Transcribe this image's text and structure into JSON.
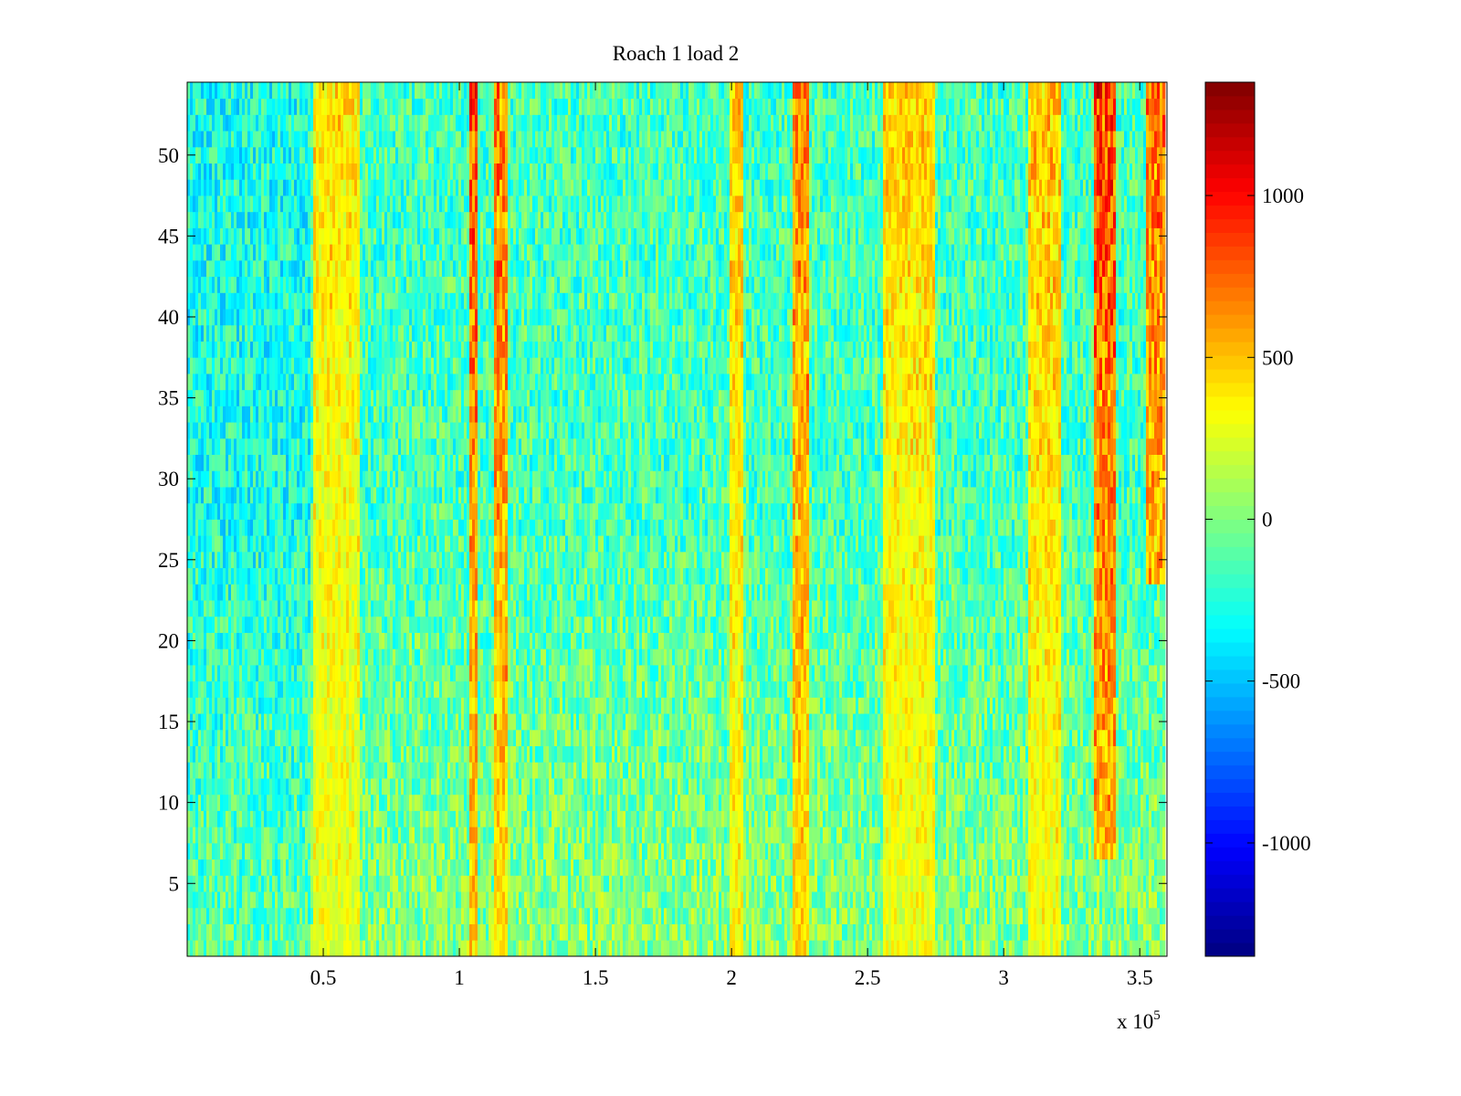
{
  "chart_data": {
    "type": "heatmap",
    "title": "Roach 1 load 2",
    "xlabel": "",
    "ylabel": "",
    "x_exponent_label": "x 10",
    "x_exponent_power": "5",
    "xlim": [
      0,
      360000
    ],
    "ylim": [
      0.5,
      54.5
    ],
    "x_tick_values": [
      0.5,
      1,
      1.5,
      2,
      2.5,
      3,
      3.5
    ],
    "x_tick_labels": [
      "0.5",
      "1",
      "1.5",
      "2",
      "2.5",
      "3",
      "3.5"
    ],
    "y_tick_values": [
      5,
      10,
      15,
      20,
      25,
      30,
      35,
      40,
      45,
      50
    ],
    "y_tick_labels": [
      "5",
      "10",
      "15",
      "20",
      "25",
      "30",
      "35",
      "40",
      "45",
      "50"
    ],
    "rows": 54,
    "colormap": "jet",
    "clim": [
      -1350,
      1350
    ],
    "colorbar": {
      "tick_values": [
        -1000,
        -500,
        0,
        500,
        1000
      ],
      "tick_labels": [
        "-1000",
        "-500",
        "0",
        "500",
        "1000"
      ]
    },
    "background_value": -80,
    "bands": [
      {
        "x_start": 46000,
        "x_end": 64000,
        "peak": 550,
        "rows": [
          1,
          54
        ]
      },
      {
        "x_start": 104000,
        "x_end": 107000,
        "peak": 1000,
        "rows": [
          1,
          54
        ]
      },
      {
        "x_start": 113000,
        "x_end": 118000,
        "peak": 900,
        "rows": [
          1,
          54
        ]
      },
      {
        "x_start": 200000,
        "x_end": 205000,
        "peak": 650,
        "rows": [
          1,
          54
        ]
      },
      {
        "x_start": 223000,
        "x_end": 229000,
        "peak": 850,
        "rows": [
          1,
          54
        ]
      },
      {
        "x_start": 256000,
        "x_end": 275000,
        "peak": 600,
        "rows": [
          1,
          54
        ]
      },
      {
        "x_start": 310000,
        "x_end": 322000,
        "peak": 650,
        "rows": [
          1,
          54
        ]
      },
      {
        "x_start": 334000,
        "x_end": 342000,
        "peak": 1050,
        "rows": [
          7,
          54
        ]
      },
      {
        "x_start": 353000,
        "x_end": 360000,
        "peak": 900,
        "rows": [
          24,
          54
        ]
      }
    ],
    "grid": false,
    "legend": "none"
  }
}
